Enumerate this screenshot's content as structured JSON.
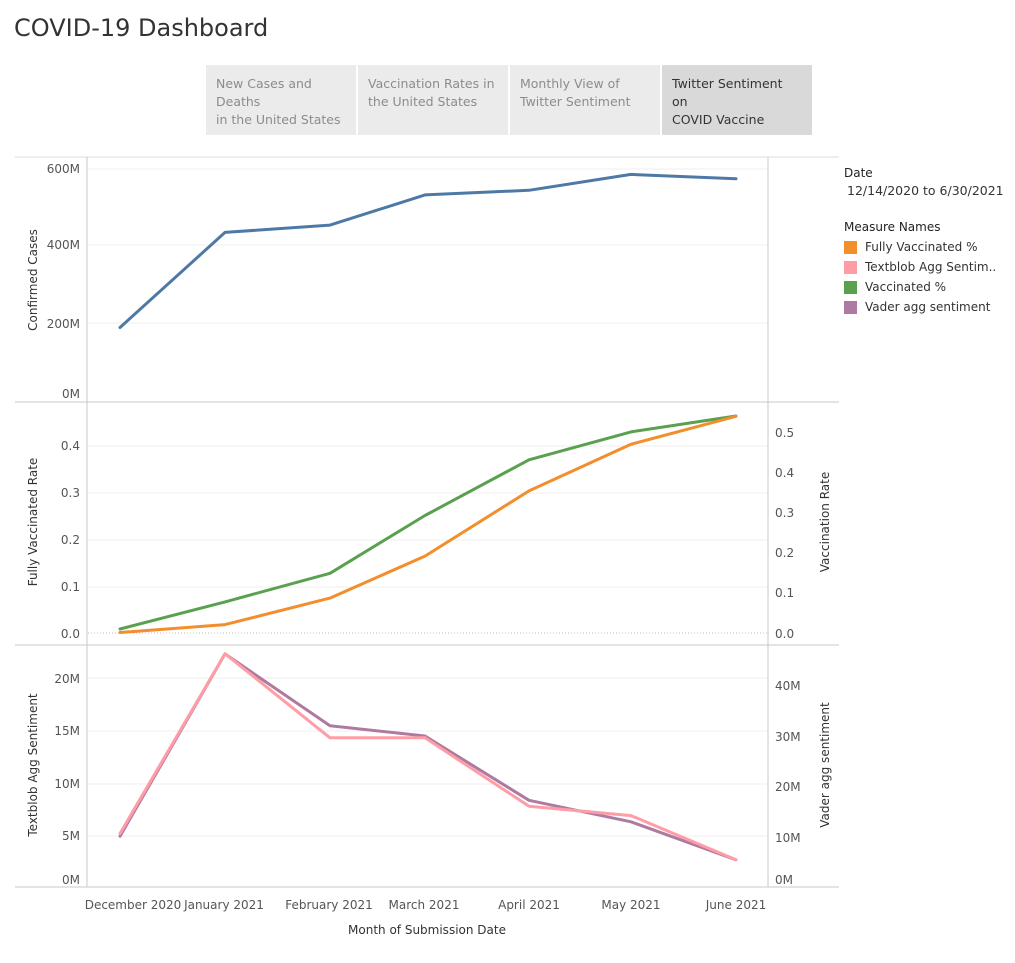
{
  "dashboard": {
    "title": "COVID-19 Dashboard"
  },
  "tabs": [
    {
      "label": "New Cases and Deaths in the United States",
      "lines": [
        "New Cases and Deaths",
        "in the United States"
      ],
      "active": false
    },
    {
      "label": "Vaccination Rates in the United States",
      "lines": [
        "Vaccination Rates in",
        "the United States"
      ],
      "active": false
    },
    {
      "label": "Monthly View of Twitter Sentiment",
      "lines": [
        "Monthly View of",
        "Twitter Sentiment"
      ],
      "active": false
    },
    {
      "label": "Twitter Sentiment on COVID Vaccine",
      "lines": [
        "Twitter Sentiment on",
        "COVID Vaccine"
      ],
      "active": true
    }
  ],
  "filter": {
    "label": "Date",
    "value": "12/14/2020 to 6/30/2021"
  },
  "legend": {
    "title": "Measure Names",
    "items": [
      {
        "label": "Fully Vaccinated %",
        "color": "#f28e2b"
      },
      {
        "label": "Textblob Agg Sentim..",
        "color": "#ff9da7"
      },
      {
        "label": "Vaccinated %",
        "color": "#59a14f"
      },
      {
        "label": "Vader agg sentiment",
        "color": "#af7aa1"
      }
    ]
  },
  "colors": {
    "cases": "#4e79a7",
    "fully": "#f28e2b",
    "vaccinated": "#59a14f",
    "textblob": "#ff9da7",
    "vader": "#af7aa1"
  },
  "chart_data": [
    {
      "type": "line",
      "x": [
        "December 2020",
        "January 2021",
        "February 2021",
        "March 2021",
        "April 2021",
        "May 2021",
        "June 2021"
      ],
      "xlabel": "Month of Submission Date",
      "ylabel": "Confirmed Cases",
      "ylim": [
        0,
        600000000
      ],
      "yticks": [
        "0M",
        "200M",
        "400M",
        "600M"
      ],
      "series": [
        {
          "values": [
            190000000,
            436000000,
            455000000,
            533000000,
            545000000,
            586000000,
            575000000
          ]
        }
      ]
    },
    {
      "type": "line",
      "x": [
        "December 2020",
        "January 2021",
        "February 2021",
        "March 2021",
        "April 2021",
        "May 2021",
        "June 2021"
      ],
      "ylabel": "Fully Vaccinated Rate",
      "ylabel_right": "Vaccination Rate",
      "ylim": [
        0,
        0.47
      ],
      "ylim_right": [
        0,
        0.55
      ],
      "yticks": [
        "0.0",
        "0.1",
        "0.2",
        "0.3",
        "0.4"
      ],
      "yticks_right": [
        "0.0",
        "0.1",
        "0.2",
        "0.3",
        "0.4",
        "0.5"
      ],
      "series": [
        {
          "name": "Fully Vaccinated %",
          "axis": "left",
          "values": [
            0.001,
            0.018,
            0.075,
            0.165,
            0.305,
            0.405,
            0.465
          ]
        },
        {
          "name": "Vaccinated %",
          "axis": "right",
          "values": [
            0.01,
            0.078,
            0.15,
            0.295,
            0.435,
            0.505,
            0.545
          ]
        }
      ]
    },
    {
      "type": "line",
      "x": [
        "December 2020",
        "January 2021",
        "February 2021",
        "March 2021",
        "April 2021",
        "May 2021",
        "June 2021"
      ],
      "ylabel": "Textblob Agg Sentiment",
      "ylabel_right": "Vader agg sentiment",
      "ylim": [
        0,
        21500000
      ],
      "ylim_right": [
        0,
        44000000
      ],
      "yticks": [
        "0M",
        "5M",
        "10M",
        "15M",
        "20M"
      ],
      "yticks_right": [
        "0M",
        "10M",
        "20M",
        "30M",
        "40M"
      ],
      "series": [
        {
          "name": "Textblob Agg Sentiment",
          "axis": "left",
          "values": [
            4900000,
            22000000,
            14000000,
            14000000,
            7500000,
            6600000,
            2400000
          ]
        },
        {
          "name": "Vader agg sentiment",
          "axis": "right",
          "values": [
            9500000,
            45000000,
            31000000,
            29000000,
            16500000,
            12300000,
            4900000
          ]
        }
      ]
    }
  ]
}
